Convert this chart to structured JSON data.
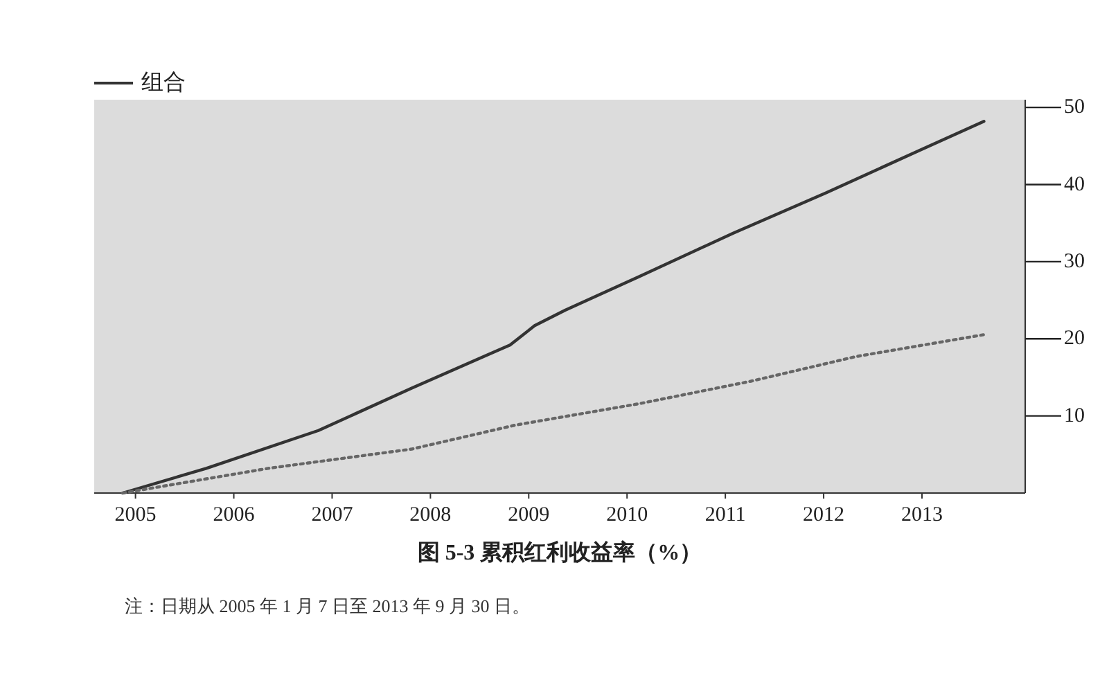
{
  "chart_data": {
    "type": "line",
    "title": "图 5-3 累积红利收益率（%）",
    "annotations": [
      "注：日期从 2005 年 1 月 7 日至 2013 年 9 月 30 日。"
    ],
    "xlim": [
      2004.58,
      2014.05
    ],
    "xticks": [
      2005,
      2006,
      2007,
      2008,
      2009,
      2010,
      2011,
      2012,
      2013
    ],
    "y2lim": [
      0,
      51
    ],
    "y2ticks": [
      10,
      20,
      30,
      40,
      50
    ],
    "legend": "top left",
    "grid": false,
    "marker": "none",
    "series": [
      {
        "name": "组合",
        "color": "#333333",
        "axis": "y2",
        "line_style": "solid",
        "x": [
          2004.87,
          2005.72,
          2006.86,
          2007.81,
          2008.81,
          2009.06,
          2009.37,
          2010.13,
          2011.08,
          2012.02,
          2012.97,
          2013.63
        ],
        "values": [
          0,
          3.2,
          8.1,
          13.6,
          19.2,
          21.7,
          23.7,
          28.1,
          33.7,
          38.9,
          44.4,
          48.2
        ]
      },
      {
        "color": "#666666",
        "axis": "y2",
        "line_style": "dotted",
        "x": [
          2004.87,
          2006.35,
          2007.81,
          2008.86,
          2010.13,
          2011.26,
          2012.33,
          2013.66
        ],
        "values": [
          0,
          3.2,
          5.7,
          8.8,
          11.6,
          14.5,
          17.7,
          20.6
        ]
      }
    ]
  }
}
